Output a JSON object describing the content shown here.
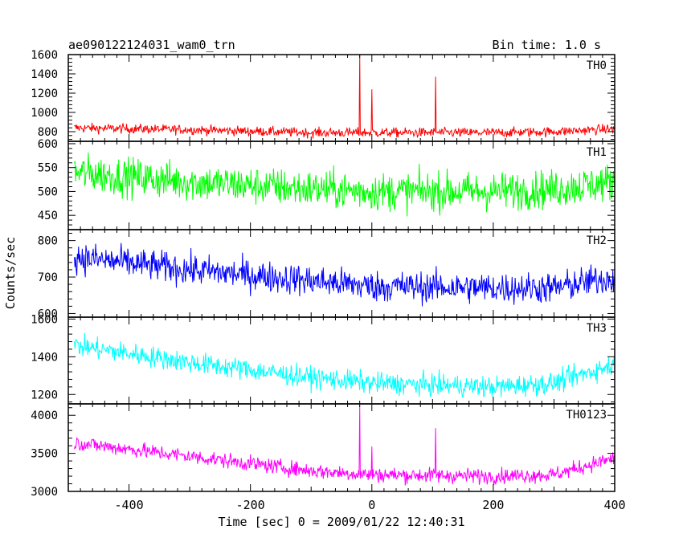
{
  "chart_data": {
    "type": "line",
    "title": "ae090122124031_wam0_trn",
    "subtitle": "Bin time: 1.0 s",
    "xlabel": "Time [sec] 0 = 2009/01/22 12:40:31",
    "ylabel": "Counts/sec",
    "xlim": [
      -500,
      400
    ],
    "xticks": [
      -400,
      -200,
      0,
      200,
      400
    ],
    "x_range_data": [
      -490,
      400
    ],
    "grid": false,
    "panels": [
      {
        "name": "TH0",
        "color": "#ff0000",
        "ylim": [
          700,
          1600
        ],
        "yticks": [
          800,
          1000,
          1200,
          1400,
          1600
        ],
        "trend": [
          [
            -490,
            840
          ],
          [
            -300,
            820
          ],
          [
            -100,
            790
          ],
          [
            0,
            790
          ],
          [
            200,
            790
          ],
          [
            300,
            800
          ],
          [
            400,
            830
          ]
        ],
        "noise": 35,
        "spikes": [
          {
            "x": -20,
            "y": 1600
          },
          {
            "x": 0,
            "y": 1240
          },
          {
            "x": 105,
            "y": 1370
          }
        ]
      },
      {
        "name": "TH1",
        "color": "#00ff00",
        "ylim": [
          420,
          605
        ],
        "yticks": [
          450,
          500,
          550,
          600
        ],
        "trend": [
          [
            -490,
            540
          ],
          [
            -300,
            520
          ],
          [
            -100,
            505
          ],
          [
            0,
            500
          ],
          [
            200,
            500
          ],
          [
            300,
            505
          ],
          [
            400,
            520
          ]
        ],
        "noise": 28,
        "spikes": []
      },
      {
        "name": "TH2",
        "color": "#0000ff",
        "ylim": [
          590,
          830
        ],
        "yticks": [
          600,
          700,
          800
        ],
        "trend": [
          [
            -490,
            755
          ],
          [
            -300,
            720
          ],
          [
            -100,
            690
          ],
          [
            0,
            675
          ],
          [
            200,
            670
          ],
          [
            300,
            670
          ],
          [
            400,
            700
          ]
        ],
        "noise": 30,
        "spikes": []
      },
      {
        "name": "TH3",
        "color": "#00ffff",
        "ylim": [
          1150,
          1610
        ],
        "yticks": [
          1200,
          1400,
          1600
        ],
        "trend": [
          [
            -490,
            1460
          ],
          [
            -300,
            1370
          ],
          [
            -100,
            1290
          ],
          [
            0,
            1260
          ],
          [
            200,
            1240
          ],
          [
            300,
            1260
          ],
          [
            400,
            1360
          ]
        ],
        "noise": 40,
        "spikes": []
      },
      {
        "name": "TH0123",
        "color": "#ff00ff",
        "ylim": [
          3000,
          4150
        ],
        "yticks": [
          3000,
          3500,
          4000
        ],
        "trend": [
          [
            -490,
            3640
          ],
          [
            -300,
            3460
          ],
          [
            -100,
            3270
          ],
          [
            0,
            3220
          ],
          [
            200,
            3200
          ],
          [
            300,
            3220
          ],
          [
            400,
            3440
          ]
        ],
        "noise": 70,
        "spikes": [
          {
            "x": -20,
            "y": 4120
          },
          {
            "x": 0,
            "y": 3590
          },
          {
            "x": 105,
            "y": 3830
          }
        ]
      }
    ]
  }
}
